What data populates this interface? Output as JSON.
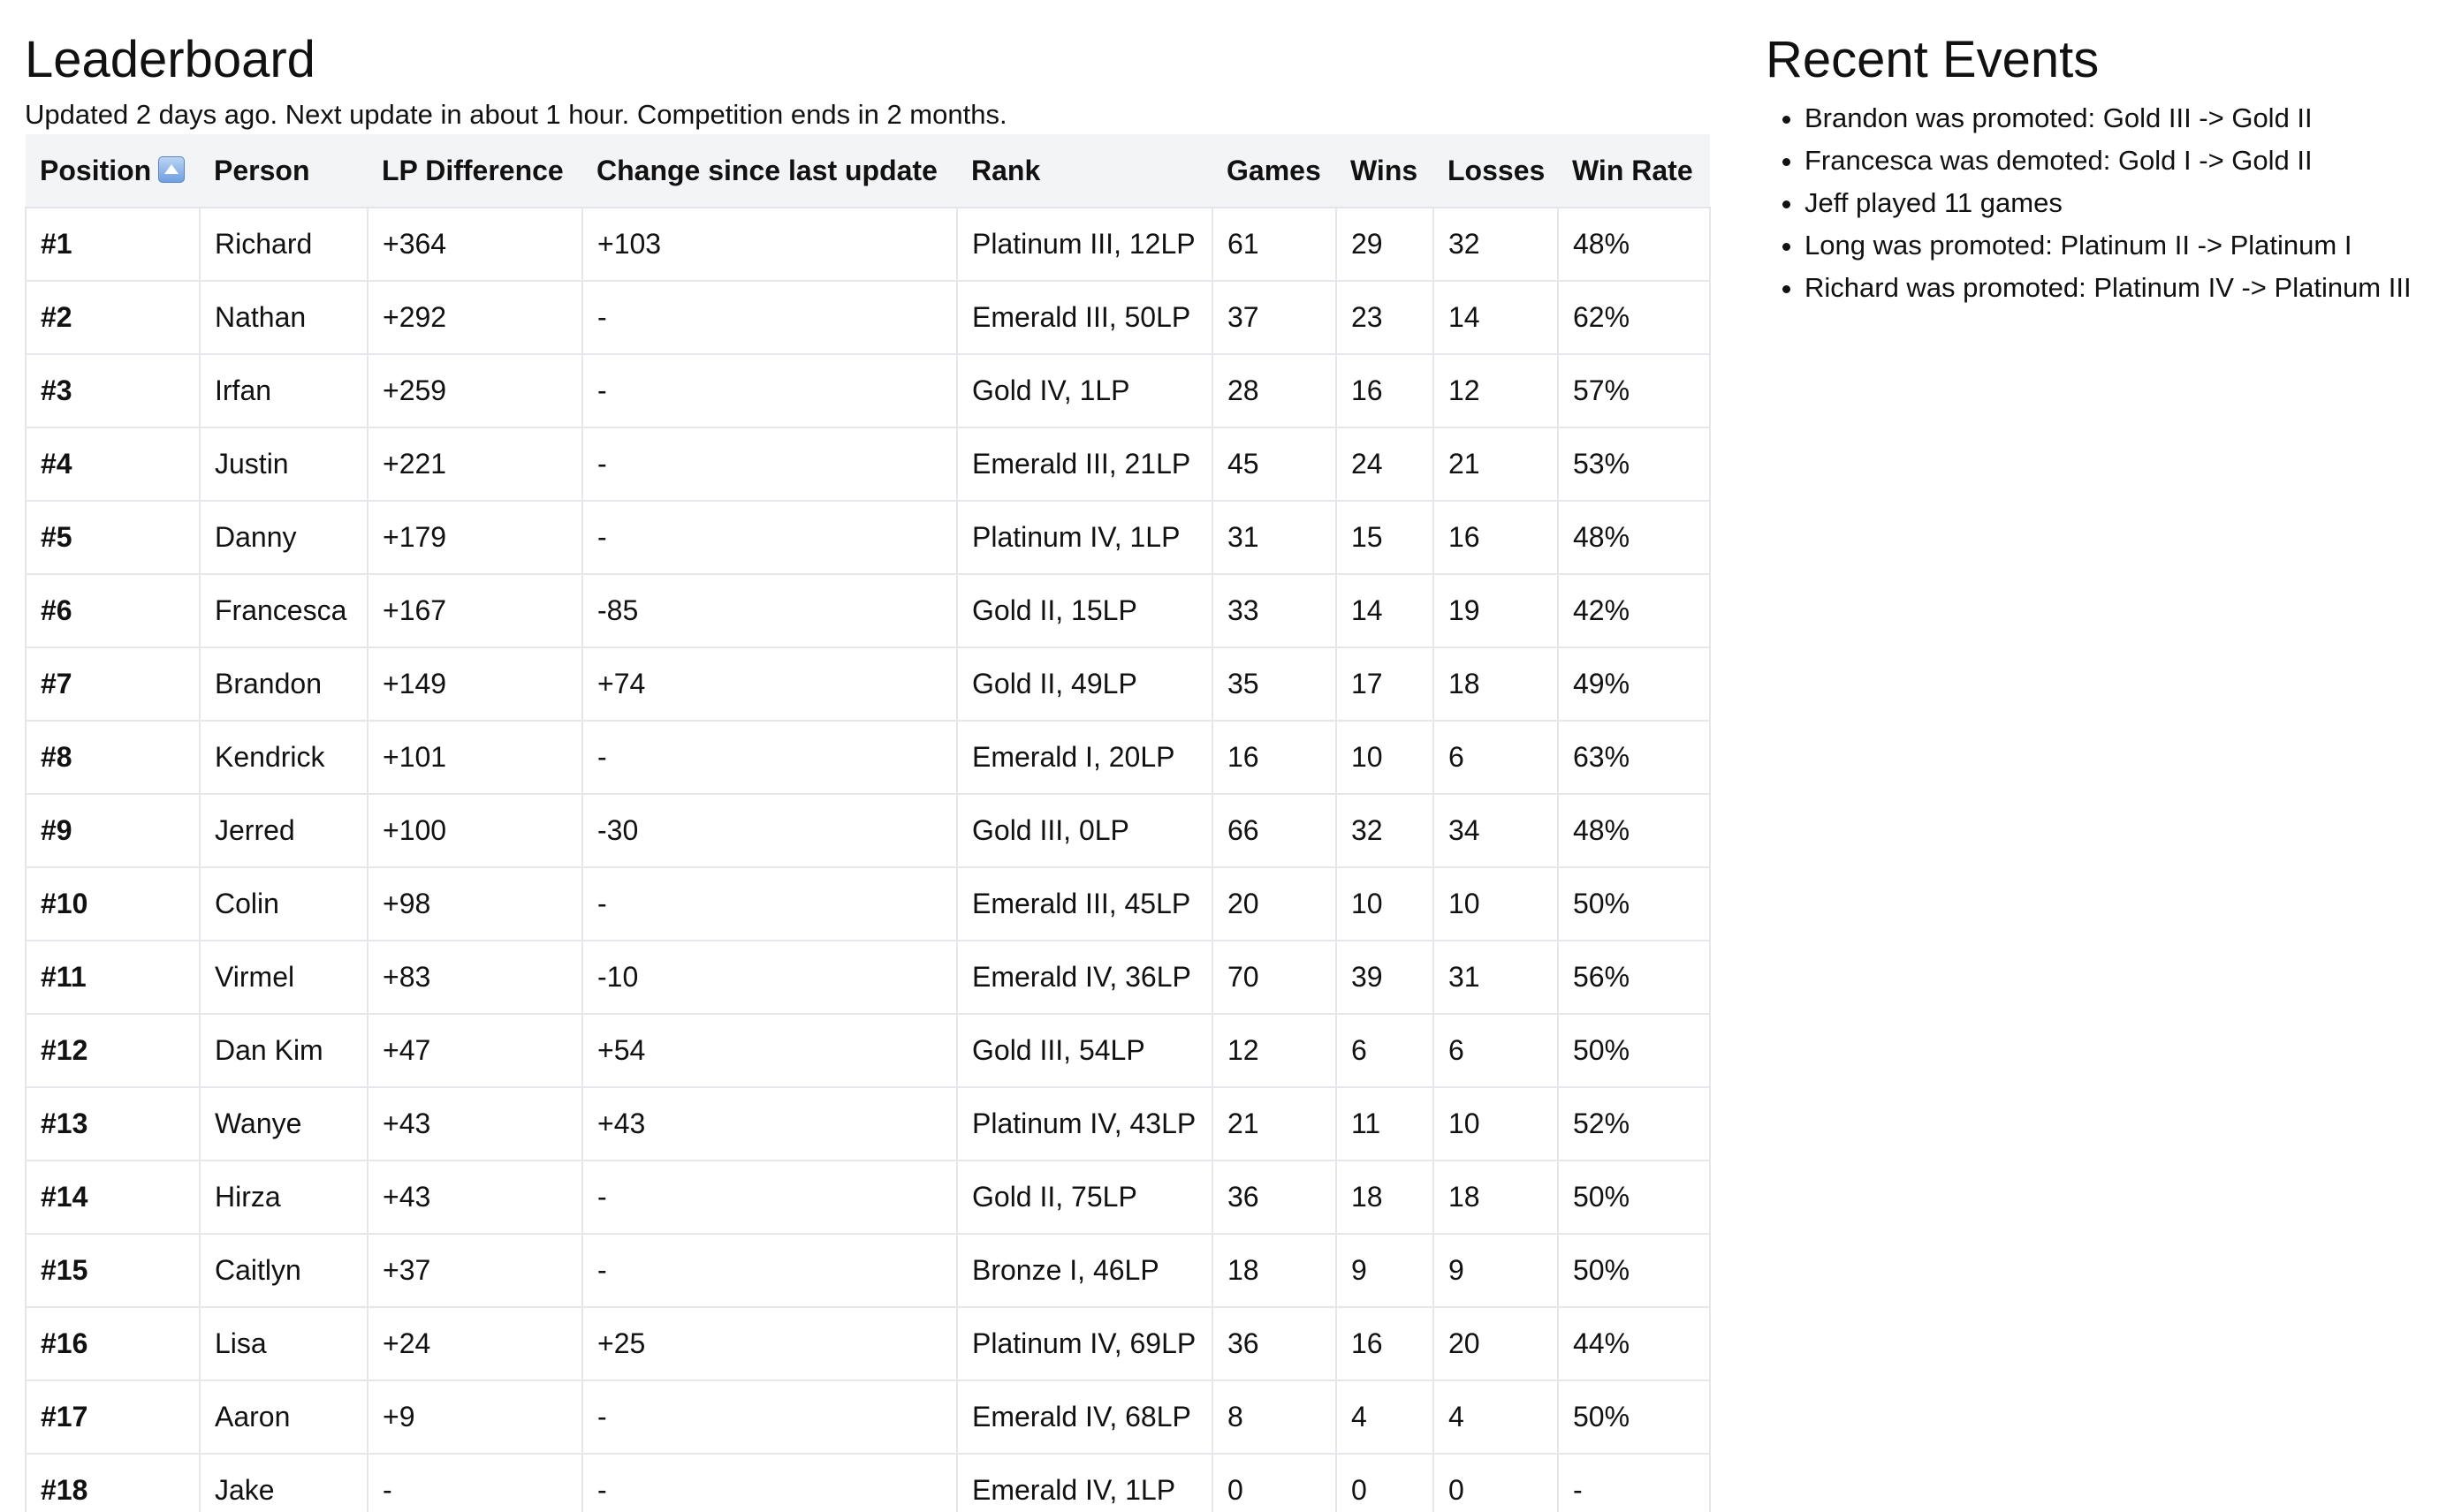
{
  "leaderboard": {
    "title": "Leaderboard",
    "subtitle": "Updated 2 days ago. Next update in about 1 hour. Competition ends in 2 months.",
    "columns": {
      "position": "Position",
      "person": "Person",
      "lp_difference": "LP Difference",
      "change": "Change since last update",
      "rank": "Rank",
      "games": "Games",
      "wins": "Wins",
      "losses": "Losses",
      "win_rate": "Win Rate"
    },
    "sort_icon": "sort-ascending-icon",
    "rows": [
      {
        "position": "#1",
        "person": "Richard",
        "lp": "+364",
        "change": "+103",
        "rank": "Platinum III, 12LP",
        "games": "61",
        "wins": "29",
        "losses": "32",
        "win_rate": "48%"
      },
      {
        "position": "#2",
        "person": "Nathan",
        "lp": "+292",
        "change": "-",
        "rank": "Emerald III, 50LP",
        "games": "37",
        "wins": "23",
        "losses": "14",
        "win_rate": "62%"
      },
      {
        "position": "#3",
        "person": "Irfan",
        "lp": "+259",
        "change": "-",
        "rank": "Gold IV, 1LP",
        "games": "28",
        "wins": "16",
        "losses": "12",
        "win_rate": "57%"
      },
      {
        "position": "#4",
        "person": "Justin",
        "lp": "+221",
        "change": "-",
        "rank": "Emerald III, 21LP",
        "games": "45",
        "wins": "24",
        "losses": "21",
        "win_rate": "53%"
      },
      {
        "position": "#5",
        "person": "Danny",
        "lp": "+179",
        "change": "-",
        "rank": "Platinum IV, 1LP",
        "games": "31",
        "wins": "15",
        "losses": "16",
        "win_rate": "48%"
      },
      {
        "position": "#6",
        "person": "Francesca",
        "lp": "+167",
        "change": "-85",
        "rank": "Gold II, 15LP",
        "games": "33",
        "wins": "14",
        "losses": "19",
        "win_rate": "42%"
      },
      {
        "position": "#7",
        "person": "Brandon",
        "lp": "+149",
        "change": "+74",
        "rank": "Gold II, 49LP",
        "games": "35",
        "wins": "17",
        "losses": "18",
        "win_rate": "49%"
      },
      {
        "position": "#8",
        "person": "Kendrick",
        "lp": "+101",
        "change": "-",
        "rank": "Emerald I, 20LP",
        "games": "16",
        "wins": "10",
        "losses": "6",
        "win_rate": "63%"
      },
      {
        "position": "#9",
        "person": "Jerred",
        "lp": "+100",
        "change": "-30",
        "rank": "Gold III, 0LP",
        "games": "66",
        "wins": "32",
        "losses": "34",
        "win_rate": "48%"
      },
      {
        "position": "#10",
        "person": "Colin",
        "lp": "+98",
        "change": "-",
        "rank": "Emerald III, 45LP",
        "games": "20",
        "wins": "10",
        "losses": "10",
        "win_rate": "50%"
      },
      {
        "position": "#11",
        "person": "Virmel",
        "lp": "+83",
        "change": "-10",
        "rank": "Emerald IV, 36LP",
        "games": "70",
        "wins": "39",
        "losses": "31",
        "win_rate": "56%"
      },
      {
        "position": "#12",
        "person": "Dan Kim",
        "lp": "+47",
        "change": "+54",
        "rank": "Gold III, 54LP",
        "games": "12",
        "wins": "6",
        "losses": "6",
        "win_rate": "50%"
      },
      {
        "position": "#13",
        "person": "Wanye",
        "lp": "+43",
        "change": "+43",
        "rank": "Platinum IV, 43LP",
        "games": "21",
        "wins": "11",
        "losses": "10",
        "win_rate": "52%"
      },
      {
        "position": "#14",
        "person": "Hirza",
        "lp": "+43",
        "change": "-",
        "rank": "Gold II, 75LP",
        "games": "36",
        "wins": "18",
        "losses": "18",
        "win_rate": "50%"
      },
      {
        "position": "#15",
        "person": "Caitlyn",
        "lp": "+37",
        "change": "-",
        "rank": "Bronze I, 46LP",
        "games": "18",
        "wins": "9",
        "losses": "9",
        "win_rate": "50%"
      },
      {
        "position": "#16",
        "person": "Lisa",
        "lp": "+24",
        "change": "+25",
        "rank": "Platinum IV, 69LP",
        "games": "36",
        "wins": "16",
        "losses": "20",
        "win_rate": "44%"
      },
      {
        "position": "#17",
        "person": "Aaron",
        "lp": "+9",
        "change": "-",
        "rank": "Emerald IV, 68LP",
        "games": "8",
        "wins": "4",
        "losses": "4",
        "win_rate": "50%"
      },
      {
        "position": "#18",
        "person": "Jake",
        "lp": "-",
        "change": "-",
        "rank": "Emerald IV, 1LP",
        "games": "0",
        "wins": "0",
        "losses": "0",
        "win_rate": "-"
      }
    ]
  },
  "events": {
    "title": "Recent Events",
    "items": [
      "Brandon was promoted: Gold III -> Gold II",
      "Francesca was demoted: Gold I -> Gold II",
      "Jeff played 11 games",
      "Long was promoted: Platinum II -> Platinum I",
      "Richard was promoted: Platinum IV -> Platinum III"
    ]
  }
}
